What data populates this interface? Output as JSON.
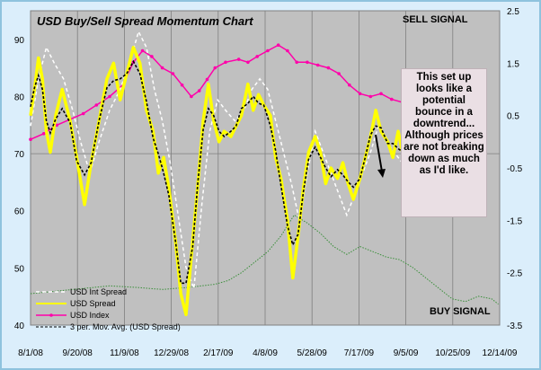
{
  "chart_data": {
    "type": "line",
    "title": "USD Buy/Sell Spread Momentum Chart",
    "x_ticks": [
      "8/1/08",
      "9/20/08",
      "11/9/08",
      "12/29/08",
      "2/17/09",
      "4/8/09",
      "5/28/09",
      "7/17/09",
      "9/5/09",
      "10/25/09",
      "12/14/09"
    ],
    "y_left_ticks": [
      "40",
      "50",
      "60",
      "70",
      "80",
      "90"
    ],
    "y_right_ticks": [
      "-3.5",
      "-2.5",
      "-1.5",
      "-0.5",
      "0.5",
      "1.5",
      "2.5"
    ],
    "ylim_left": [
      40,
      95
    ],
    "ylim_right": [
      -3.5,
      2.5
    ],
    "annotations": {
      "sell_signal": "SELL SIGNAL",
      "buy_signal": "BUY SIGNAL",
      "note": "This set up looks like a potential bounce in a downtrend... Although prices are not breaking down as much as I'd like."
    },
    "legend": [
      "USD Int Spread",
      "USD Spread",
      "USD Index",
      "3 per. Mov. Avg. (USD Spread)"
    ],
    "colors": {
      "int_spread": "#ffffff",
      "spread": "#ffff00",
      "index": "#ff00aa",
      "mov_avg": "#000000",
      "green": "#3a8f3a",
      "plot_bg": "#c0c0c0"
    },
    "series": [
      {
        "name": "USD Spread",
        "axis": "right",
        "points": [
          [
            0,
            0.5
          ],
          [
            3,
            1.0
          ],
          [
            6,
            1.6
          ],
          [
            9,
            1.2
          ],
          [
            12,
            0.2
          ],
          [
            15,
            -0.2
          ],
          [
            19,
            0.5
          ],
          [
            24,
            1.0
          ],
          [
            30,
            0.4
          ],
          [
            35,
            -0.3
          ],
          [
            41,
            -1.2
          ],
          [
            46,
            -0.4
          ],
          [
            52,
            0.4
          ],
          [
            58,
            1.2
          ],
          [
            63,
            1.5
          ],
          [
            68,
            0.8
          ],
          [
            73,
            1.3
          ],
          [
            78,
            1.8
          ],
          [
            83,
            1.5
          ],
          [
            88,
            0.6
          ],
          [
            93,
            0.2
          ],
          [
            97,
            -0.6
          ],
          [
            101,
            -0.3
          ],
          [
            105,
            -0.9
          ],
          [
            110,
            -1.9
          ],
          [
            114,
            -2.9
          ],
          [
            118,
            -3.3
          ],
          [
            123,
            -1.9
          ],
          [
            127,
            -0.8
          ],
          [
            131,
            0.4
          ],
          [
            135,
            1.1
          ],
          [
            139,
            0.4
          ],
          [
            143,
            0.0
          ],
          [
            147,
            0.2
          ],
          [
            152,
            0.1
          ],
          [
            156,
            0.3
          ],
          [
            160,
            0.5
          ],
          [
            165,
            1.1
          ],
          [
            169,
            0.6
          ],
          [
            173,
            0.9
          ],
          [
            177,
            0.7
          ],
          [
            182,
            0.5
          ],
          [
            186,
            -0.3
          ],
          [
            190,
            -0.7
          ],
          [
            195,
            -1.5
          ],
          [
            199,
            -2.6
          ],
          [
            203,
            -1.8
          ],
          [
            207,
            -0.9
          ],
          [
            211,
            -0.2
          ],
          [
            216,
            0.1
          ],
          [
            220,
            -0.2
          ],
          [
            224,
            -0.8
          ],
          [
            228,
            -0.5
          ],
          [
            233,
            -0.7
          ],
          [
            237,
            -0.4
          ],
          [
            241,
            -0.8
          ],
          [
            245,
            -1.1
          ],
          [
            250,
            -0.7
          ],
          [
            254,
            -0.3
          ],
          [
            258,
            0.1
          ],
          [
            262,
            0.6
          ],
          [
            266,
            0.2
          ],
          [
            271,
            0.0
          ],
          [
            275,
            -0.3
          ],
          [
            279,
            0.2
          ],
          [
            283,
            -0.3
          ],
          [
            287,
            -0.5
          ]
        ]
      },
      {
        "name": "USD Int Spread",
        "axis": "right",
        "points": [
          [
            0,
            0.3
          ],
          [
            6,
            1.2
          ],
          [
            12,
            1.8
          ],
          [
            18,
            1.5
          ],
          [
            25,
            1.2
          ],
          [
            32,
            0.6
          ],
          [
            38,
            0.0
          ],
          [
            45,
            -0.6
          ],
          [
            52,
            0.0
          ],
          [
            60,
            0.6
          ],
          [
            68,
            1.0
          ],
          [
            75,
            1.5
          ],
          [
            82,
            2.1
          ],
          [
            88,
            1.8
          ],
          [
            94,
            1.0
          ],
          [
            100,
            0.4
          ],
          [
            106,
            -0.4
          ],
          [
            112,
            -1.4
          ],
          [
            118,
            -2.4
          ],
          [
            124,
            -2.8
          ],
          [
            130,
            -1.2
          ],
          [
            136,
            0.2
          ],
          [
            142,
            0.8
          ],
          [
            148,
            0.6
          ],
          [
            155,
            0.4
          ],
          [
            162,
            0.6
          ],
          [
            168,
            1.0
          ],
          [
            174,
            1.2
          ],
          [
            180,
            1.0
          ],
          [
            186,
            0.4
          ],
          [
            192,
            -0.2
          ],
          [
            198,
            -0.8
          ],
          [
            204,
            -1.5
          ],
          [
            210,
            -0.6
          ],
          [
            216,
            0.2
          ],
          [
            222,
            -0.2
          ],
          [
            228,
            -0.6
          ],
          [
            234,
            -1.0
          ],
          [
            240,
            -1.4
          ],
          [
            246,
            -1.0
          ],
          [
            252,
            -0.6
          ],
          [
            258,
            -0.2
          ],
          [
            264,
            0.3
          ],
          [
            270,
            0.0
          ],
          [
            276,
            -0.2
          ],
          [
            282,
            -0.4
          ],
          [
            287,
            -0.2
          ]
        ]
      },
      {
        "name": "USD Index",
        "axis": "left",
        "points": [
          [
            0,
            72.5
          ],
          [
            10,
            73.5
          ],
          [
            20,
            75
          ],
          [
            30,
            76
          ],
          [
            40,
            77
          ],
          [
            50,
            78.5
          ],
          [
            60,
            80
          ],
          [
            70,
            82
          ],
          [
            78,
            86
          ],
          [
            85,
            88
          ],
          [
            92,
            87
          ],
          [
            100,
            85
          ],
          [
            108,
            84
          ],
          [
            115,
            82
          ],
          [
            122,
            80
          ],
          [
            128,
            81
          ],
          [
            134,
            83
          ],
          [
            140,
            85
          ],
          [
            148,
            86
          ],
          [
            158,
            86.5
          ],
          [
            165,
            86
          ],
          [
            172,
            87
          ],
          [
            180,
            88
          ],
          [
            188,
            89
          ],
          [
            195,
            88
          ],
          [
            202,
            86
          ],
          [
            210,
            86
          ],
          [
            218,
            85.5
          ],
          [
            226,
            85
          ],
          [
            234,
            84
          ],
          [
            242,
            82
          ],
          [
            250,
            80.5
          ],
          [
            258,
            80
          ],
          [
            266,
            80.5
          ],
          [
            274,
            79.5
          ],
          [
            282,
            79
          ],
          [
            287,
            78.5
          ]
        ]
      },
      {
        "name": "Green",
        "axis": "right",
        "points": [
          [
            0,
            -2.9
          ],
          [
            20,
            -2.85
          ],
          [
            40,
            -2.8
          ],
          [
            60,
            -2.75
          ],
          [
            80,
            -2.78
          ],
          [
            100,
            -2.82
          ],
          [
            120,
            -2.78
          ],
          [
            140,
            -2.72
          ],
          [
            150,
            -2.65
          ],
          [
            160,
            -2.5
          ],
          [
            170,
            -2.3
          ],
          [
            180,
            -2.1
          ],
          [
            190,
            -1.8
          ],
          [
            200,
            -1.4
          ],
          [
            210,
            -1.55
          ],
          [
            220,
            -1.75
          ],
          [
            230,
            -2.0
          ],
          [
            240,
            -2.15
          ],
          [
            250,
            -2.0
          ],
          [
            260,
            -2.1
          ],
          [
            270,
            -2.2
          ],
          [
            280,
            -2.25
          ],
          [
            290,
            -2.4
          ],
          [
            300,
            -2.6
          ],
          [
            310,
            -2.8
          ],
          [
            320,
            -3.0
          ],
          [
            330,
            -3.05
          ],
          [
            340,
            -2.95
          ],
          [
            350,
            -3.0
          ],
          [
            355,
            -3.1
          ]
        ]
      }
    ]
  }
}
